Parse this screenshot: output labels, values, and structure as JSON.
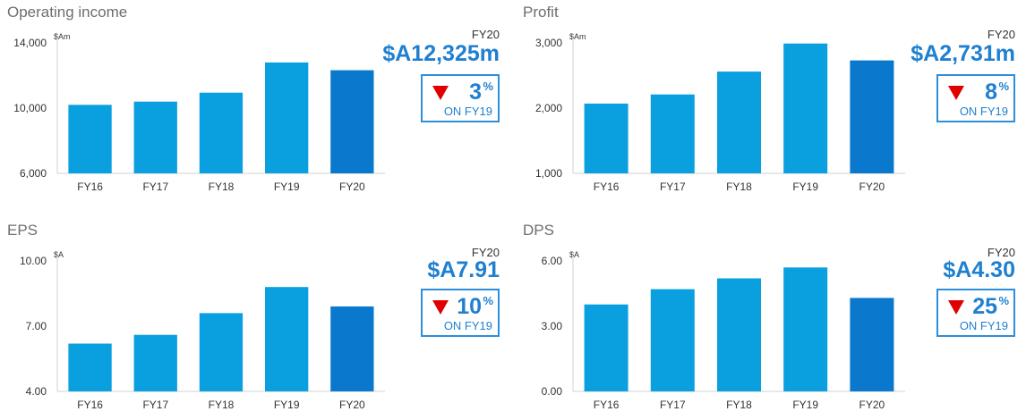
{
  "charts": [
    {
      "title": "Operating income",
      "highlight": {
        "label": "FY20",
        "value_text": "$A12,325m",
        "direction": "down",
        "change": "3",
        "change_unit": "%",
        "comparison": "ON FY19"
      },
      "chart_data": {
        "type": "bar",
        "title": "Operating income",
        "unit_label": "$Am",
        "categories": [
          "FY16",
          "FY17",
          "FY18",
          "FY19",
          "FY20"
        ],
        "values": [
          10200,
          10400,
          10950,
          12800,
          12325
        ],
        "ylim": [
          6000,
          14000
        ],
        "yticks": [
          "6,000",
          "10,000",
          "14,000"
        ],
        "ytick_values": [
          6000,
          10000,
          14000
        ],
        "colors": [
          "#0aa0e0",
          "#0aa0e0",
          "#0aa0e0",
          "#0aa0e0",
          "#0a78cc"
        ]
      }
    },
    {
      "title": "Profit",
      "highlight": {
        "label": "FY20",
        "value_text": "$A2,731m",
        "direction": "down",
        "change": "8",
        "change_unit": "%",
        "comparison": "ON FY19"
      },
      "chart_data": {
        "type": "bar",
        "title": "Profit",
        "unit_label": "$Am",
        "categories": [
          "FY16",
          "FY17",
          "FY18",
          "FY19",
          "FY20"
        ],
        "values": [
          2070,
          2210,
          2560,
          2990,
          2731
        ],
        "ylim": [
          1000,
          3000
        ],
        "yticks": [
          "1,000",
          "2,000",
          "3,000"
        ],
        "ytick_values": [
          1000,
          2000,
          3000
        ],
        "colors": [
          "#0aa0e0",
          "#0aa0e0",
          "#0aa0e0",
          "#0aa0e0",
          "#0a78cc"
        ]
      }
    },
    {
      "title": "EPS",
      "highlight": {
        "label": "FY20",
        "value_text": "$A7.91",
        "direction": "down",
        "change": "10",
        "change_unit": "%",
        "comparison": "ON FY19"
      },
      "chart_data": {
        "type": "bar",
        "title": "EPS",
        "unit_label": "$A",
        "categories": [
          "FY16",
          "FY17",
          "FY18",
          "FY19",
          "FY20"
        ],
        "values": [
          6.2,
          6.6,
          7.6,
          8.8,
          7.91
        ],
        "ylim": [
          4,
          10
        ],
        "yticks": [
          "4.00",
          "7.00",
          "10.00"
        ],
        "ytick_values": [
          4,
          7,
          10
        ],
        "colors": [
          "#0aa0e0",
          "#0aa0e0",
          "#0aa0e0",
          "#0aa0e0",
          "#0a78cc"
        ]
      }
    },
    {
      "title": "DPS",
      "highlight": {
        "label": "FY20",
        "value_text": "$A4.30",
        "direction": "down",
        "change": "25",
        "change_unit": "%",
        "comparison": "ON FY19"
      },
      "chart_data": {
        "type": "bar",
        "title": "DPS",
        "unit_label": "$A",
        "categories": [
          "FY16",
          "FY17",
          "FY18",
          "FY19",
          "FY20"
        ],
        "values": [
          4.0,
          4.7,
          5.2,
          5.7,
          4.3
        ],
        "ylim": [
          0,
          6
        ],
        "yticks": [
          "0.00",
          "3.00",
          "6.00"
        ],
        "ytick_values": [
          0,
          3,
          6
        ],
        "colors": [
          "#0aa0e0",
          "#0aa0e0",
          "#0aa0e0",
          "#0aa0e0",
          "#0a78cc"
        ]
      }
    }
  ]
}
